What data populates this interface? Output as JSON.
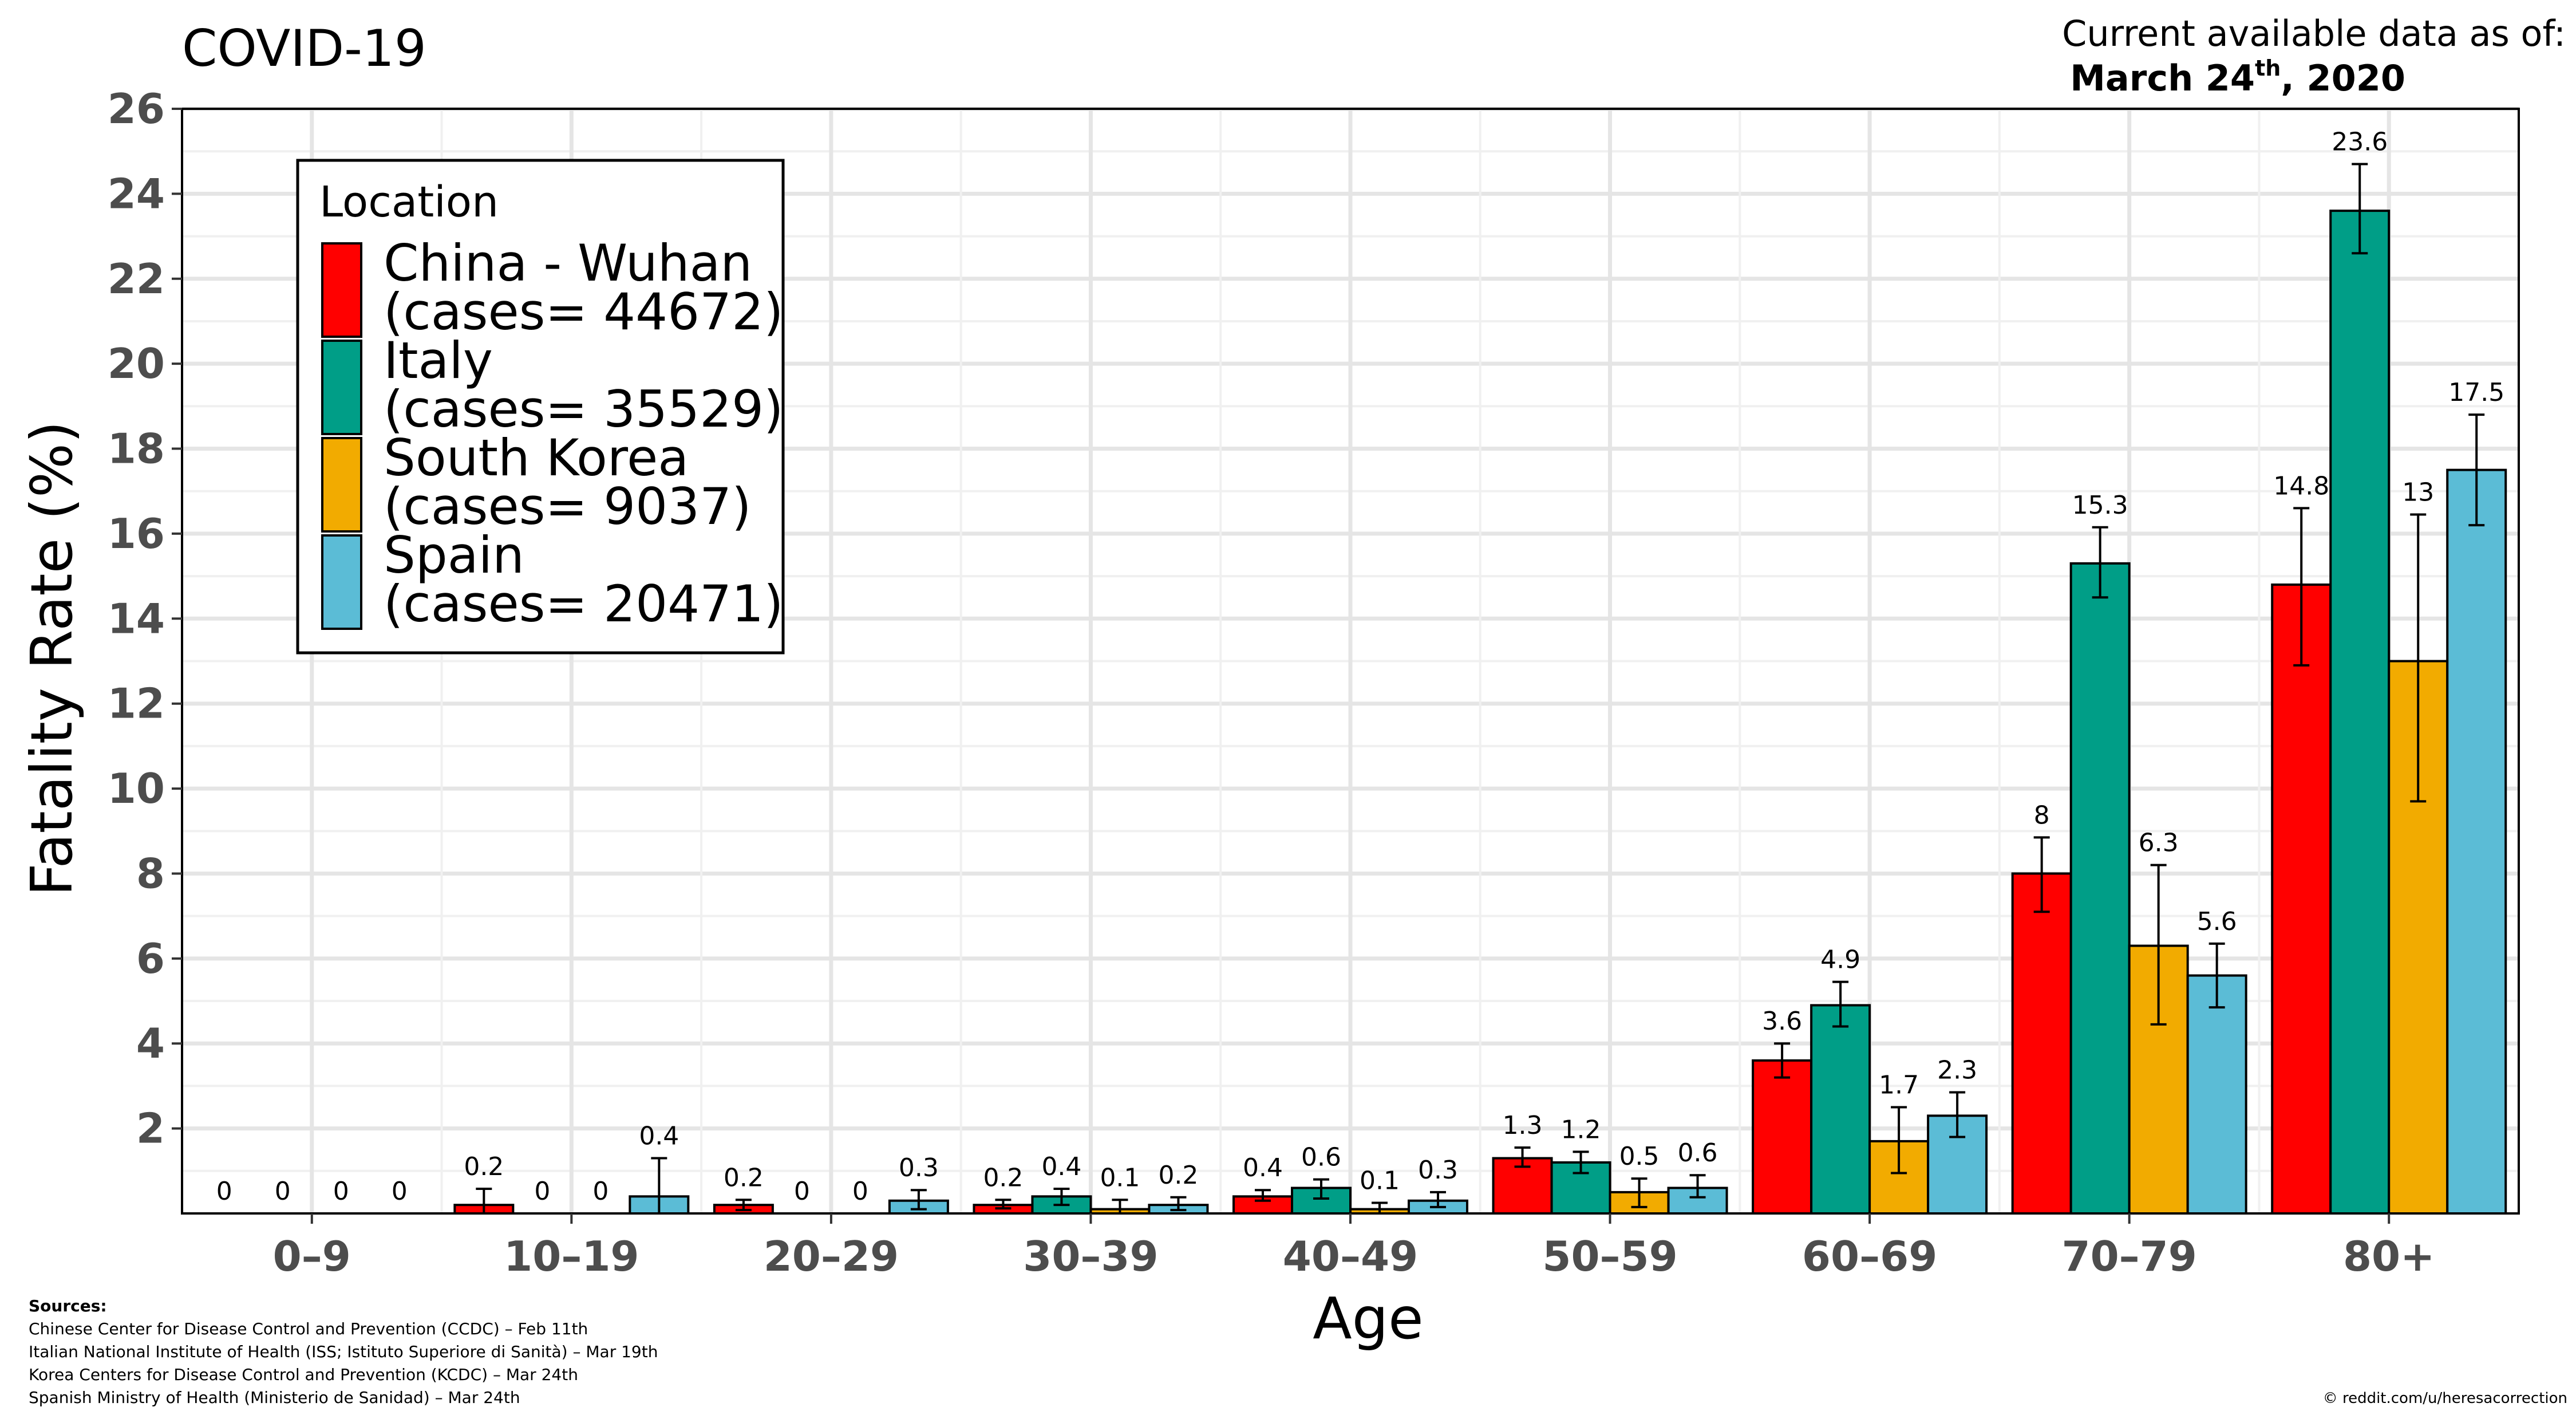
{
  "header": {
    "title": "COVID-19",
    "asof_line1": "Current available data as of:",
    "asof_date": "March 24",
    "asof_sup": "th",
    "asof_year": ", 2020"
  },
  "chart_data": {
    "type": "bar",
    "title": "COVID-19",
    "xlabel": "Age",
    "ylabel": "Fatality Rate (%)",
    "ylim": [
      0,
      26
    ],
    "yticks": [
      "2",
      "4",
      "6",
      "8",
      "10",
      "12",
      "14",
      "16",
      "18",
      "20",
      "22",
      "24",
      "26"
    ],
    "grid": true,
    "legend_title": "Location",
    "legend_position": "top-left",
    "categories": [
      "0–9",
      "10–19",
      "20–29",
      "30–39",
      "40–49",
      "50–59",
      "60–69",
      "70–79",
      "80+"
    ],
    "series": [
      {
        "name": "China - Wuhan",
        "legend_line1": "China - Wuhan",
        "legend_line2": "(cases= 44672)",
        "color": "#ff0000",
        "values": [
          0,
          0.2,
          0.2,
          0.2,
          0.4,
          1.3,
          3.6,
          8,
          14.8
        ],
        "labels": [
          "0",
          "0.2",
          "0.2",
          "0.2",
          "0.4",
          "1.3",
          "3.6",
          "8",
          "14.8"
        ],
        "error_low": [
          0,
          0,
          0.08,
          0.12,
          0.3,
          1.1,
          3.2,
          7.1,
          12.9
        ],
        "error_high": [
          0,
          0.58,
          0.32,
          0.32,
          0.55,
          1.55,
          4.0,
          8.85,
          16.6
        ]
      },
      {
        "name": "Italy",
        "legend_line1": "Italy",
        "legend_line2": "(cases= 35529)",
        "color": "#009e87",
        "values": [
          0,
          0,
          0,
          0.4,
          0.6,
          1.2,
          4.9,
          15.3,
          23.6
        ],
        "labels": [
          "0",
          "0",
          "0",
          "0.4",
          "0.6",
          "1.2",
          "4.9",
          "15.3",
          "23.6"
        ],
        "error_low": [
          0,
          0,
          0,
          0.2,
          0.35,
          0.95,
          4.4,
          14.5,
          22.6
        ],
        "error_high": [
          0,
          0,
          0,
          0.58,
          0.8,
          1.45,
          5.45,
          16.15,
          24.7
        ]
      },
      {
        "name": "South Korea",
        "legend_line1": "South Korea",
        "legend_line2": "(cases= 9037)",
        "color": "#f2ab00",
        "values": [
          0,
          0,
          0,
          0.1,
          0.1,
          0.5,
          1.7,
          6.3,
          13
        ],
        "labels": [
          "0",
          "0",
          "0",
          "0.1",
          "0.1",
          "0.5",
          "1.7",
          "6.3",
          "13"
        ],
        "error_low": [
          0,
          0,
          0,
          0,
          0,
          0.15,
          0.95,
          4.45,
          9.7
        ],
        "error_high": [
          0,
          0,
          0,
          0.32,
          0.25,
          0.82,
          2.5,
          8.2,
          16.45
        ]
      },
      {
        "name": "Spain",
        "legend_line1": "Spain",
        "legend_line2": "(cases= 20471)",
        "color": "#5bbcd6",
        "values": [
          0,
          0.4,
          0.3,
          0.2,
          0.3,
          0.6,
          2.3,
          5.6,
          17.5
        ],
        "labels": [
          "0",
          "0.4",
          "0.3",
          "0.2",
          "0.3",
          "0.6",
          "2.3",
          "5.6",
          "17.5"
        ],
        "error_low": [
          0,
          0,
          0.1,
          0.08,
          0.15,
          0.38,
          1.8,
          4.85,
          16.2
        ],
        "error_high": [
          0,
          1.3,
          0.55,
          0.38,
          0.5,
          0.9,
          2.85,
          6.35,
          18.8
        ]
      }
    ]
  },
  "footer": {
    "sources_heading": "Sources:",
    "sources": [
      "Chinese Center for Disease Control and Prevention (CCDC) – Feb 11th",
      "Italian National Institute of Health (ISS; Istituto Superiore di Sanità) – Mar 19th",
      "Korea Centers for Disease Control and Prevention (KCDC) – Mar 24th",
      "Spanish Ministry of Health (Ministerio de Sanidad) – Mar 24th"
    ],
    "credit": "© reddit.com/u/heresacorrection"
  }
}
